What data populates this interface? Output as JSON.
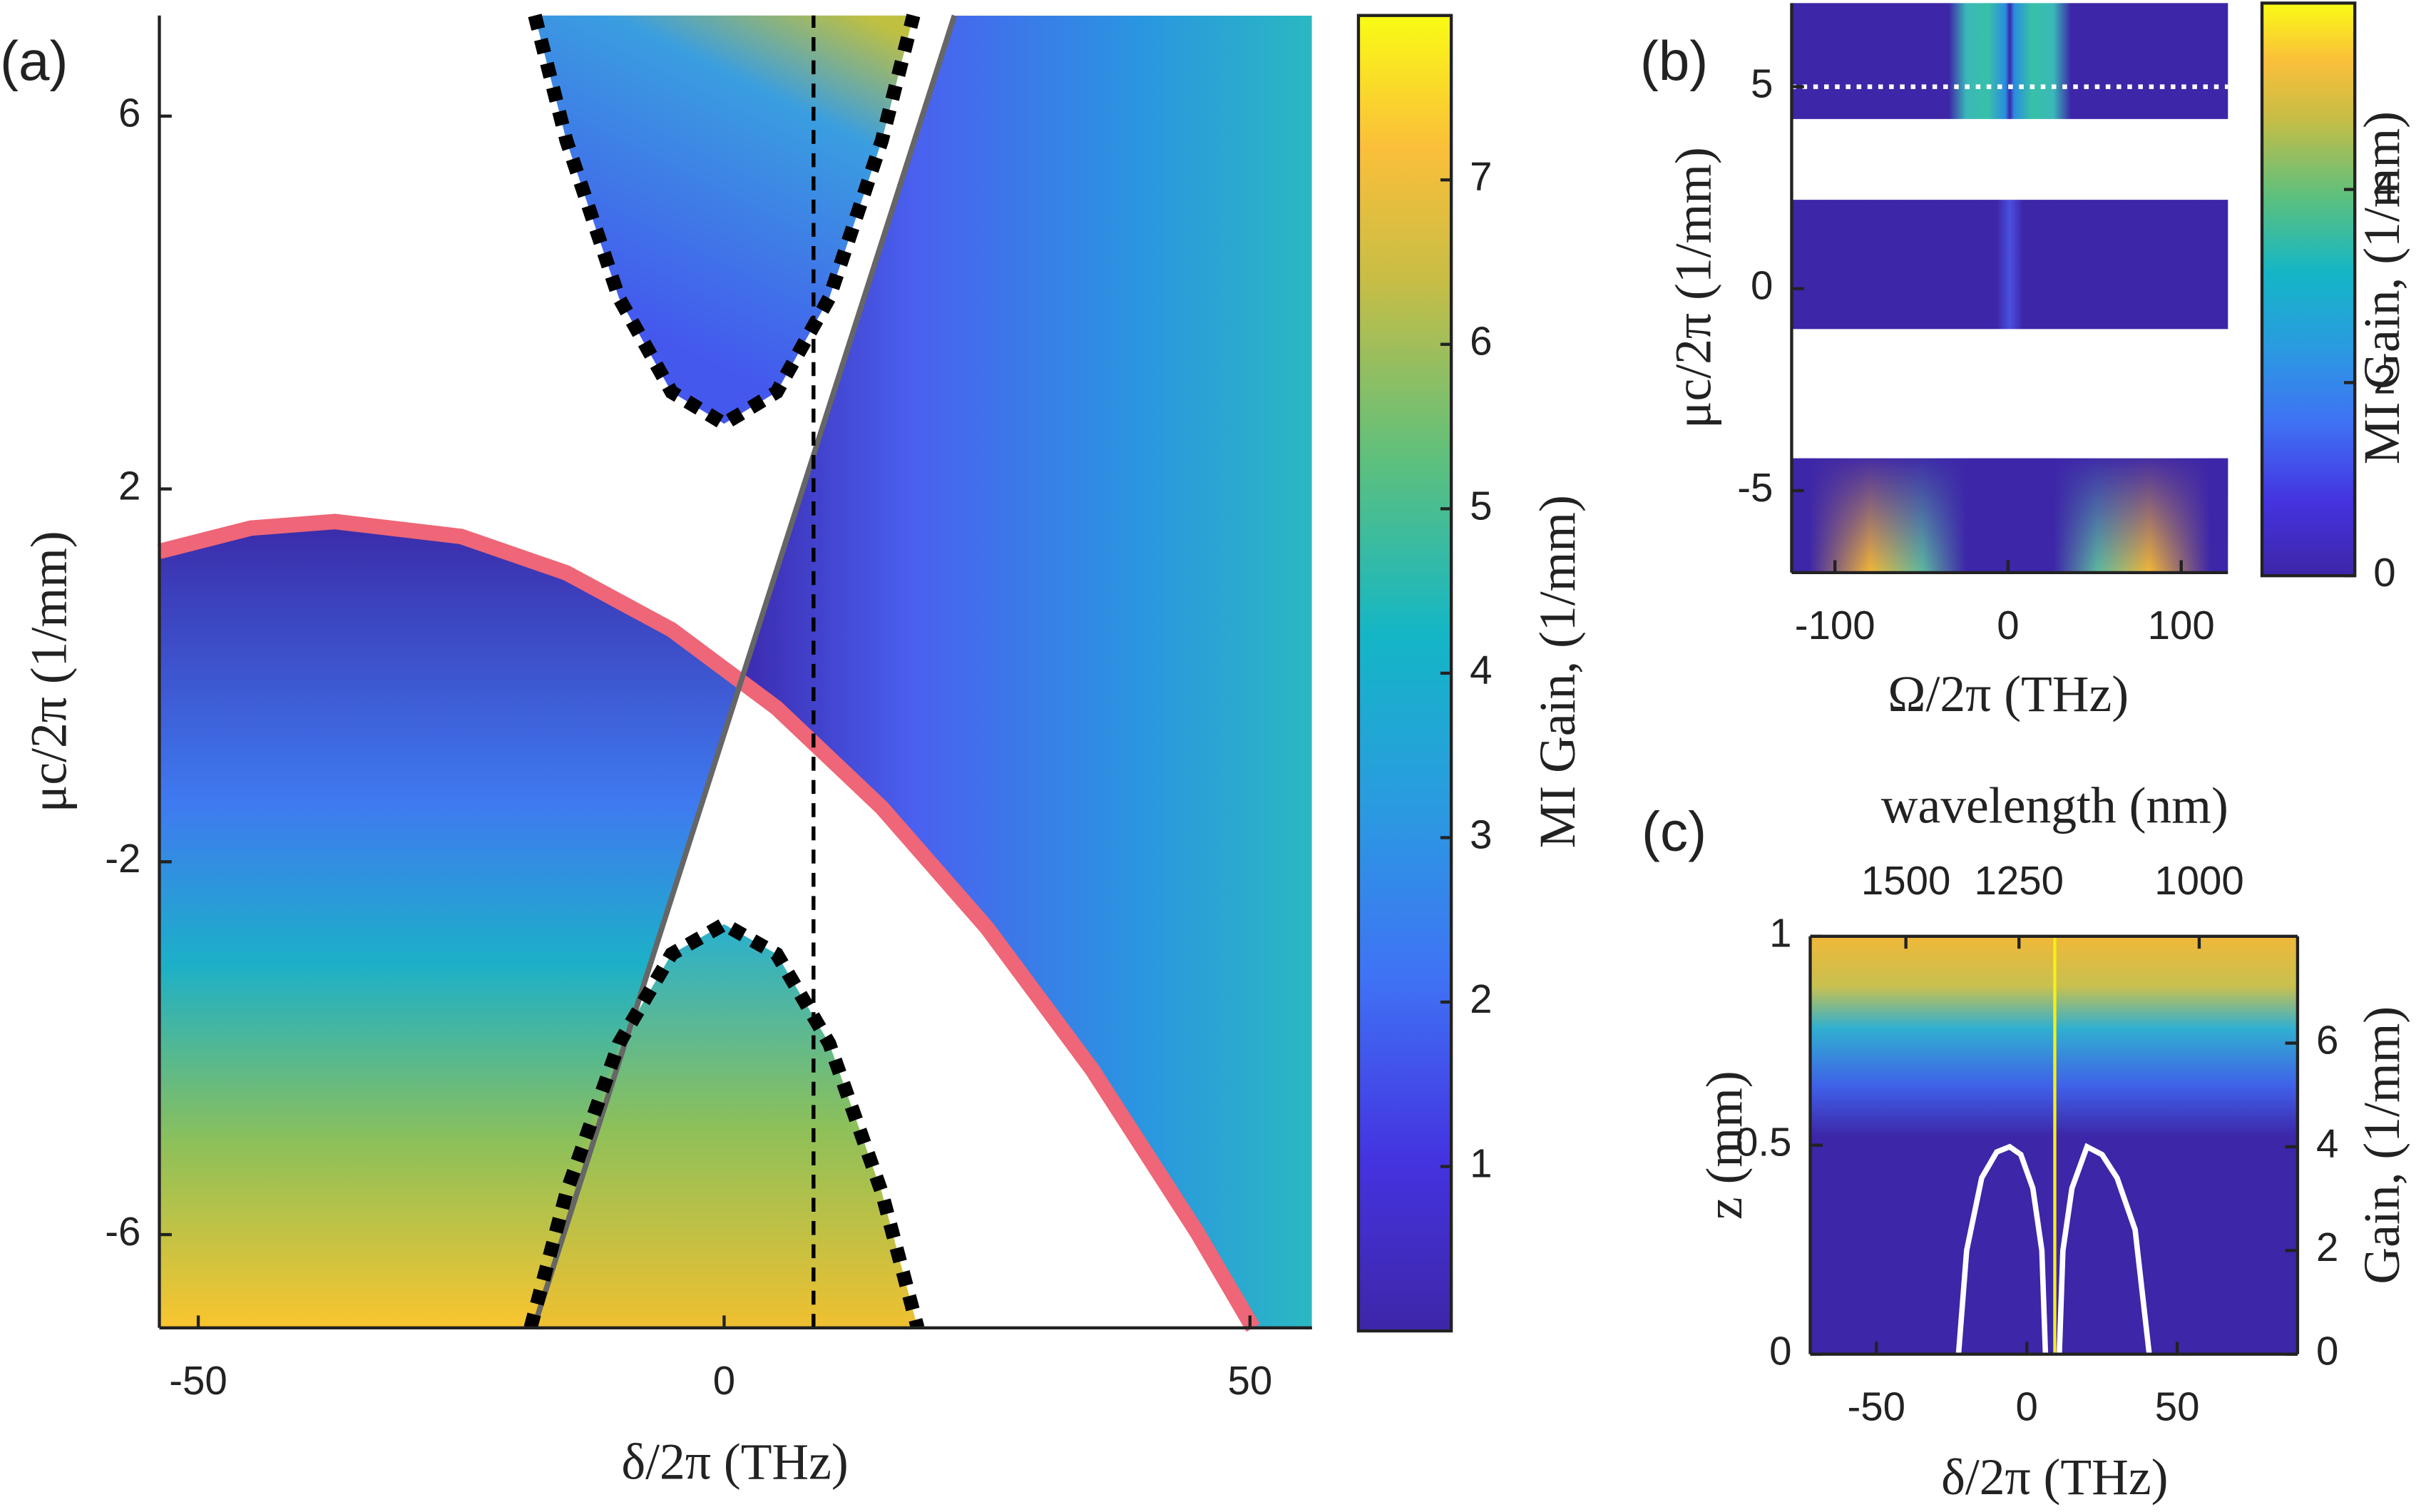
{
  "chart_data": [
    {
      "type": "heatmap",
      "panel_label": "(a)",
      "xlabel": "δ/2π (THz)",
      "ylabel": "μc/2π (1/mm)",
      "xlim": [
        -53.7,
        55.9
      ],
      "ylim": [
        -7,
        7.08
      ],
      "xticks": [
        -50,
        0,
        50
      ],
      "yticks": [
        -6,
        -2,
        2,
        6
      ],
      "colorbar": {
        "label": "MI Gain, (1/mm)",
        "lim": [
          0,
          8
        ],
        "ticks": [
          1,
          2,
          3,
          4,
          5,
          6,
          7
        ]
      },
      "lines": [
        {
          "color": "#ee6677",
          "style": "thick",
          "x": [
            -53.7,
            -45,
            -37,
            -25,
            -15,
            -5,
            5,
            15,
            25,
            35,
            45,
            50.3
          ],
          "y": [
            1.33,
            1.58,
            1.65,
            1.49,
            1.1,
            0.49,
            -0.35,
            -1.42,
            -2.71,
            -4.23,
            -5.98,
            -7
          ]
        },
        {
          "color": "#666666",
          "style": "solid",
          "x": [
            -18.1,
            21.9
          ],
          "y": [
            -7,
            7.08
          ]
        },
        {
          "color": "#000000",
          "style": "dotted",
          "x": [
            -18,
            -15,
            -10,
            -5,
            0,
            5,
            10,
            15,
            18
          ],
          "y": [
            7.08,
            5.74,
            4.05,
            3.04,
            2.7,
            3.04,
            4.05,
            5.74,
            7.08
          ]
        },
        {
          "color": "#000000",
          "style": "dotted",
          "x": [
            -18.4,
            -15,
            -10,
            -5,
            0,
            5,
            10,
            15,
            18.4
          ],
          "y": [
            -7,
            -5.55,
            -3.95,
            -2.99,
            -2.67,
            -2.99,
            -3.95,
            -5.55,
            -7
          ]
        },
        {
          "color": "#000000",
          "style": "dashed",
          "x": [
            8.5,
            8.5
          ],
          "y": [
            -7,
            7.08
          ]
        }
      ]
    },
    {
      "type": "heatmap",
      "panel_label": "(b)",
      "xlabel": "Ω/2π (THz)",
      "ylabel": "μc/2π (1/mm)",
      "xlim": [
        -125,
        127
      ],
      "ylim": [
        -7.03,
        7.07
      ],
      "xticks": [
        -100,
        0,
        100
      ],
      "yticks": [
        -5,
        0,
        5
      ],
      "bands": [
        [
          4.2,
          7.07
        ],
        [
          -1,
          2.2
        ],
        [
          -7.03,
          -4.2
        ]
      ],
      "colorbar": {
        "label": "MI Gain, (1/mm)",
        "lim": [
          0,
          5.93
        ],
        "ticks": [
          0,
          2,
          4
        ]
      },
      "lines": [
        {
          "color": "#ffffff",
          "style": "dotted-thin",
          "x": [
            -125,
            127
          ],
          "y": [
            5,
            5
          ]
        }
      ]
    },
    {
      "type": "heatmap",
      "panel_label": "(c)",
      "xlabel": "δ/2π (THz)",
      "ylabel": "z (mm)",
      "y2label": "Gain, (1/mm)",
      "x2label": "wavelength (nm)",
      "xlim": [
        -72,
        90
      ],
      "ylim": [
        0,
        1
      ],
      "y2lim": [
        0,
        8.06
      ],
      "xticks": [
        -50,
        0,
        50
      ],
      "yticks": [
        0,
        0.5,
        1
      ],
      "y2ticks": [
        0,
        2,
        4,
        6
      ],
      "x2ticks": [
        {
          "value": -40.2,
          "label": "1500"
        },
        {
          "value": -2.6,
          "label": "1250"
        },
        {
          "value": 57.3,
          "label": "1000"
        }
      ],
      "lines": [
        {
          "color": "#f4f01a",
          "style": "thin",
          "x": [
            9.3,
            9.3
          ],
          "y": [
            0,
            1
          ]
        },
        {
          "color": "#ffffff",
          "style": "solid",
          "axis": "y2",
          "x": [
            -22.7,
            -20,
            -15,
            -10,
            -5.7,
            -2,
            2,
            5,
            6.2
          ],
          "y": [
            0,
            2.0,
            3.4,
            3.9,
            4.0,
            3.85,
            3.2,
            2.0,
            0
          ]
        },
        {
          "color": "#ffffff",
          "style": "solid",
          "axis": "y2",
          "x": [
            10.8,
            12,
            15,
            20,
            25,
            30,
            36,
            40.7
          ],
          "y": [
            0,
            2.0,
            3.2,
            4.0,
            3.85,
            3.4,
            2.4,
            0
          ]
        }
      ]
    }
  ]
}
